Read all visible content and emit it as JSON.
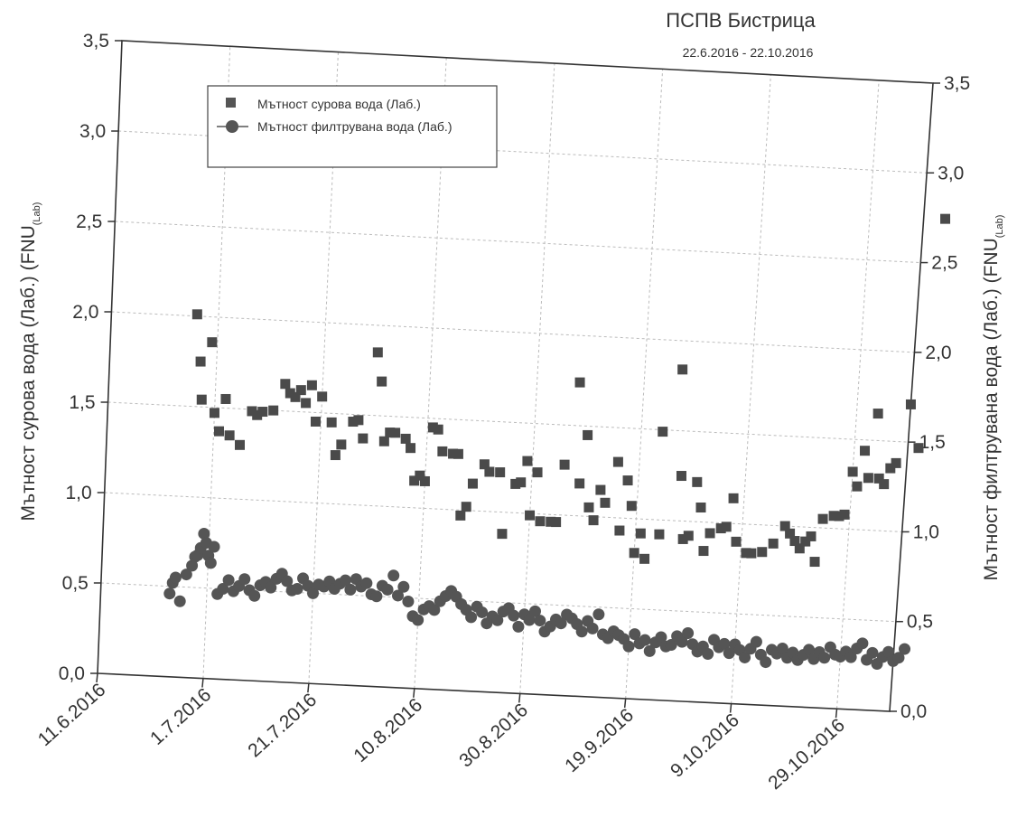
{
  "chart_data": {
    "type": "scatter",
    "title": "ПСПВ Бистрица",
    "subtitle": "22.6.2016 - 22.10.2016",
    "ylabel_left": "Мътност сурова вода (Лаб.) (FNU",
    "ylabel_left_sub": "(Lab)",
    "ylabel_right": "Мътност филтрувана вода (Лаб.) (FNU",
    "ylabel_right_sub": "(Lab)",
    "x_ticks": [
      "11.6.2016",
      "1.7.2016",
      "21.7.2016",
      "10.8.2016",
      "30.8.2016",
      "19.9.2016",
      "9.10.2016",
      "29.10.2016"
    ],
    "x_range_days": [
      0,
      150
    ],
    "y_left_ticks": [
      "0,0",
      "0,5",
      "1,0",
      "1,5",
      "2,0",
      "2,5",
      "3,0",
      "3,5"
    ],
    "y_left_range": [
      0,
      3.5
    ],
    "y_right_ticks": [
      "0,0",
      "0,5",
      "1,0",
      "1,5",
      "2,0",
      "2,5",
      "3,0",
      "3,5"
    ],
    "y_right_range": [
      0,
      3.5
    ],
    "grid": true,
    "legend_position": "top-left",
    "series": [
      {
        "name": "Мътност сурова вода (Лаб.)",
        "marker": "square",
        "axis": "left",
        "points": [
          [
            16,
            2.01
          ],
          [
            17,
            1.75
          ],
          [
            17.5,
            1.54
          ],
          [
            19,
            1.86
          ],
          [
            20,
            1.47
          ],
          [
            21,
            1.37
          ],
          [
            22,
            1.55
          ],
          [
            23,
            1.35
          ],
          [
            25,
            1.3
          ],
          [
            27,
            1.49
          ],
          [
            28,
            1.47
          ],
          [
            29,
            1.49
          ],
          [
            31,
            1.5
          ],
          [
            33,
            1.65
          ],
          [
            34,
            1.6
          ],
          [
            35,
            1.58
          ],
          [
            36,
            1.62
          ],
          [
            37,
            1.55
          ],
          [
            38,
            1.65
          ],
          [
            39,
            1.45
          ],
          [
            40,
            1.59
          ],
          [
            42,
            1.45
          ],
          [
            43,
            1.27
          ],
          [
            44,
            1.33
          ],
          [
            46,
            1.46
          ],
          [
            47,
            1.47
          ],
          [
            48,
            1.37
          ],
          [
            50,
            1.85
          ],
          [
            51,
            1.69
          ],
          [
            52,
            1.36
          ],
          [
            53,
            1.41
          ],
          [
            54,
            1.41
          ],
          [
            56,
            1.38
          ],
          [
            57,
            1.33
          ],
          [
            58,
            1.15
          ],
          [
            59,
            1.18
          ],
          [
            60,
            1.15
          ],
          [
            61,
            1.45
          ],
          [
            62,
            1.44
          ],
          [
            63,
            1.32
          ],
          [
            65,
            1.31
          ],
          [
            66,
            1.31
          ],
          [
            67,
            0.97
          ],
          [
            68,
            1.02
          ],
          [
            69,
            1.15
          ],
          [
            71,
            1.26
          ],
          [
            72,
            1.22
          ],
          [
            74,
            1.22
          ],
          [
            75,
            0.88
          ],
          [
            77,
            1.16
          ],
          [
            78,
            1.17
          ],
          [
            79,
            1.29
          ],
          [
            80,
            0.99
          ],
          [
            81,
            1.23
          ],
          [
            82,
            0.96
          ],
          [
            84,
            0.96
          ],
          [
            85,
            0.96
          ],
          [
            86,
            1.28
          ],
          [
            88,
            1.74
          ],
          [
            89,
            1.18
          ],
          [
            90,
            1.45
          ],
          [
            91,
            1.05
          ],
          [
            92,
            0.98
          ],
          [
            93,
            1.15
          ],
          [
            94,
            1.08
          ],
          [
            96,
            1.31
          ],
          [
            97,
            0.93
          ],
          [
            98,
            1.21
          ],
          [
            99,
            1.07
          ],
          [
            100,
            0.81
          ],
          [
            101,
            0.92
          ],
          [
            102,
            0.78
          ],
          [
            104,
            1.49
          ],
          [
            104.5,
            0.92
          ],
          [
            107,
            1.84
          ],
          [
            108,
            1.25
          ],
          [
            109,
            0.9
          ],
          [
            110,
            0.92
          ],
          [
            111,
            1.22
          ],
          [
            112,
            1.08
          ],
          [
            113,
            0.84
          ],
          [
            114,
            0.94
          ],
          [
            116,
            0.97
          ],
          [
            117,
            0.98
          ],
          [
            118,
            1.14
          ],
          [
            119,
            0.9
          ],
          [
            121,
            0.84
          ],
          [
            122,
            0.84
          ],
          [
            124,
            0.85
          ],
          [
            126,
            0.9
          ],
          [
            128,
            1.0
          ],
          [
            129,
            0.96
          ],
          [
            130,
            0.92
          ],
          [
            131,
            0.88
          ],
          [
            132,
            0.92
          ],
          [
            133,
            0.95
          ],
          [
            134,
            0.81
          ],
          [
            135,
            1.05
          ],
          [
            137,
            1.07
          ],
          [
            138,
            1.07
          ],
          [
            139,
            1.08
          ],
          [
            140,
            1.32
          ],
          [
            141,
            1.24
          ],
          [
            142,
            1.44
          ],
          [
            143,
            1.29
          ],
          [
            144,
            1.65
          ],
          [
            145,
            1.29
          ],
          [
            146,
            1.26
          ],
          [
            147,
            1.35
          ],
          [
            148,
            1.38
          ],
          [
            150,
            1.71
          ],
          [
            152,
            1.47
          ],
          [
            154,
            2.75
          ]
        ]
      },
      {
        "name": "Мътност филтрувана вода (Лаб.)",
        "marker": "circle",
        "axis": "right",
        "points": [
          [
            13,
            0.46
          ],
          [
            13.5,
            0.52
          ],
          [
            14,
            0.55
          ],
          [
            15,
            0.42
          ],
          [
            16,
            0.57
          ],
          [
            17,
            0.62
          ],
          [
            17.5,
            0.67
          ],
          [
            18,
            0.68
          ],
          [
            18.5,
            0.72
          ],
          [
            19,
            0.8
          ],
          [
            19.5,
            0.75
          ],
          [
            20,
            0.68
          ],
          [
            20.5,
            0.64
          ],
          [
            21,
            0.73
          ],
          [
            22,
            0.47
          ],
          [
            23,
            0.5
          ],
          [
            24,
            0.55
          ],
          [
            25,
            0.49
          ],
          [
            26,
            0.52
          ],
          [
            27,
            0.56
          ],
          [
            28,
            0.5
          ],
          [
            29,
            0.47
          ],
          [
            30,
            0.53
          ],
          [
            31,
            0.55
          ],
          [
            32,
            0.52
          ],
          [
            33,
            0.57
          ],
          [
            34,
            0.6
          ],
          [
            35,
            0.56
          ],
          [
            36,
            0.51
          ],
          [
            37,
            0.52
          ],
          [
            38,
            0.58
          ],
          [
            39,
            0.54
          ],
          [
            40,
            0.5
          ],
          [
            41,
            0.55
          ],
          [
            42,
            0.54
          ],
          [
            43,
            0.57
          ],
          [
            44,
            0.53
          ],
          [
            45,
            0.56
          ],
          [
            46,
            0.58
          ],
          [
            47,
            0.53
          ],
          [
            48,
            0.59
          ],
          [
            49,
            0.55
          ],
          [
            50,
            0.57
          ],
          [
            51,
            0.51
          ],
          [
            52,
            0.5
          ],
          [
            53,
            0.56
          ],
          [
            54,
            0.54
          ],
          [
            55,
            0.62
          ],
          [
            56,
            0.51
          ],
          [
            57,
            0.56
          ],
          [
            58,
            0.48
          ],
          [
            59,
            0.4
          ],
          [
            60,
            0.38
          ],
          [
            61,
            0.44
          ],
          [
            62,
            0.46
          ],
          [
            63,
            0.44
          ],
          [
            64,
            0.49
          ],
          [
            65,
            0.52
          ],
          [
            66,
            0.55
          ],
          [
            67,
            0.52
          ],
          [
            68,
            0.48
          ],
          [
            69,
            0.45
          ],
          [
            70,
            0.41
          ],
          [
            71,
            0.47
          ],
          [
            72,
            0.44
          ],
          [
            73,
            0.38
          ],
          [
            74,
            0.42
          ],
          [
            75,
            0.4
          ],
          [
            76,
            0.45
          ],
          [
            77,
            0.47
          ],
          [
            78,
            0.43
          ],
          [
            79,
            0.37
          ],
          [
            80,
            0.44
          ],
          [
            81,
            0.41
          ],
          [
            82,
            0.46
          ],
          [
            83,
            0.41
          ],
          [
            84,
            0.35
          ],
          [
            85,
            0.38
          ],
          [
            86,
            0.42
          ],
          [
            87,
            0.4
          ],
          [
            88,
            0.45
          ],
          [
            89,
            0.43
          ],
          [
            90,
            0.4
          ],
          [
            91,
            0.36
          ],
          [
            92,
            0.42
          ],
          [
            93,
            0.38
          ],
          [
            94,
            0.46
          ],
          [
            95,
            0.35
          ],
          [
            96,
            0.33
          ],
          [
            97,
            0.37
          ],
          [
            98,
            0.35
          ],
          [
            99,
            0.33
          ],
          [
            100,
            0.29
          ],
          [
            101,
            0.36
          ],
          [
            102,
            0.31
          ],
          [
            103,
            0.33
          ],
          [
            104,
            0.27
          ],
          [
            105,
            0.32
          ],
          [
            106,
            0.35
          ],
          [
            107,
            0.3
          ],
          [
            108,
            0.31
          ],
          [
            109,
            0.36
          ],
          [
            110,
            0.33
          ],
          [
            111,
            0.38
          ],
          [
            112,
            0.32
          ],
          [
            113,
            0.28
          ],
          [
            114,
            0.31
          ],
          [
            115,
            0.27
          ],
          [
            116,
            0.35
          ],
          [
            117,
            0.31
          ],
          [
            118,
            0.33
          ],
          [
            119,
            0.28
          ],
          [
            120,
            0.33
          ],
          [
            121,
            0.3
          ],
          [
            122,
            0.26
          ],
          [
            123,
            0.31
          ],
          [
            124,
            0.35
          ],
          [
            125,
            0.28
          ],
          [
            126,
            0.24
          ],
          [
            127,
            0.31
          ],
          [
            128,
            0.29
          ],
          [
            129,
            0.32
          ],
          [
            130,
            0.27
          ],
          [
            131,
            0.3
          ],
          [
            132,
            0.26
          ],
          [
            133,
            0.29
          ],
          [
            134,
            0.32
          ],
          [
            135,
            0.27
          ],
          [
            136,
            0.31
          ],
          [
            137,
            0.28
          ],
          [
            138,
            0.34
          ],
          [
            139,
            0.3
          ],
          [
            140,
            0.29
          ],
          [
            141,
            0.32
          ],
          [
            142,
            0.29
          ],
          [
            143,
            0.34
          ],
          [
            144,
            0.37
          ],
          [
            145,
            0.28
          ],
          [
            146,
            0.32
          ],
          [
            147,
            0.26
          ],
          [
            148,
            0.3
          ],
          [
            149,
            0.33
          ],
          [
            150,
            0.28
          ],
          [
            151,
            0.3
          ],
          [
            152,
            0.35
          ]
        ]
      }
    ]
  }
}
